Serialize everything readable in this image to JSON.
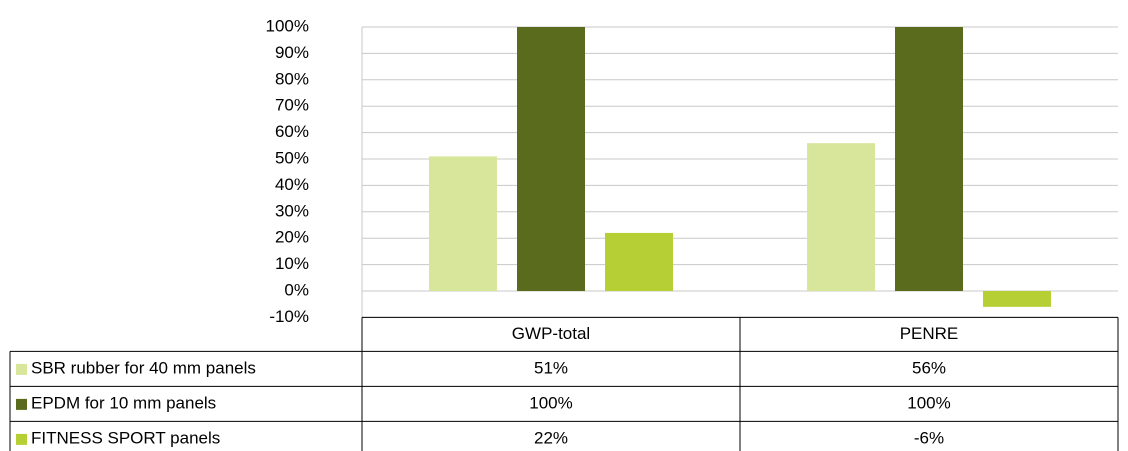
{
  "chart_data": {
    "type": "bar",
    "categories": [
      "GWP-total",
      "PENRE"
    ],
    "series": [
      {
        "name": "SBR rubber for 40 mm panels",
        "color": "#d7e69b",
        "values": [
          51,
          56
        ],
        "value_labels": [
          "51%",
          "56%"
        ]
      },
      {
        "name": "EPDM for 10 mm panels",
        "color": "#5a6b1e",
        "values": [
          100,
          100
        ],
        "value_labels": [
          "100%",
          "100%"
        ]
      },
      {
        "name": "FITNESS SPORT panels",
        "color": "#b5cf35",
        "values": [
          22,
          -6
        ],
        "value_labels": [
          "22%",
          "-6%"
        ]
      }
    ],
    "ylim": [
      -10,
      100
    ],
    "yticks": [
      {
        "value": -10,
        "label": "-10%"
      },
      {
        "value": 0,
        "label": "0%"
      },
      {
        "value": 10,
        "label": "10%"
      },
      {
        "value": 20,
        "label": "20%"
      },
      {
        "value": 30,
        "label": "30%"
      },
      {
        "value": 40,
        "label": "40%"
      },
      {
        "value": 50,
        "label": "50%"
      },
      {
        "value": 60,
        "label": "60%"
      },
      {
        "value": 70,
        "label": "70%"
      },
      {
        "value": 80,
        "label": "80%"
      },
      {
        "value": 90,
        "label": "90%"
      },
      {
        "value": 100,
        "label": "100%"
      }
    ],
    "grid": true
  }
}
